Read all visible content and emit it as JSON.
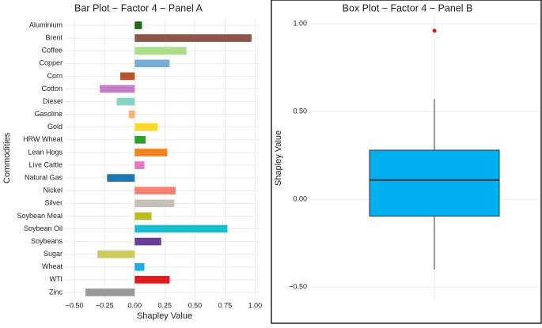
{
  "chart_data": [
    {
      "type": "bar",
      "title": "Bar Plot − Factor 4 − Panel A",
      "x_label": "Shapley Value",
      "y_label": "Commodities",
      "categories": [
        "Aluminium",
        "Brent",
        "Coffee",
        "Copper",
        "Corn",
        "Cotton",
        "Diesel",
        "Gasoline",
        "Gold",
        "HRW Wheat",
        "Lean Hogs",
        "Live Cattle",
        "Natural Gas",
        "Nickel",
        "Silver",
        "Soybean Meal",
        "Soybean Oil",
        "Soybeans",
        "Sugar",
        "Wheat",
        "WTI",
        "Zinc"
      ],
      "values": [
        0.06,
        0.97,
        0.43,
        0.29,
        -0.12,
        -0.29,
        -0.15,
        -0.05,
        0.19,
        0.09,
        0.27,
        0.08,
        -0.23,
        0.34,
        0.33,
        0.14,
        0.77,
        0.22,
        -0.31,
        0.08,
        0.29,
        -0.41
      ],
      "colors": [
        "#1a6b1a",
        "#8c564b",
        "#aedd8a",
        "#7aaad6",
        "#b5562a",
        "#c47fc4",
        "#86d4c4",
        "#f7b36c",
        "#ffd92f",
        "#2ca02c",
        "#f58220",
        "#e377c2",
        "#1f77b4",
        "#fa8072",
        "#c8c0b8",
        "#bcbd22",
        "#17becf",
        "#6a3d9a",
        "#cdc95a",
        "#17b0e8",
        "#e31a1c",
        "#999999"
      ],
      "xlim": [
        -0.58,
        1.03
      ],
      "xticks": [
        {
          "value": -0.5,
          "label": "−0.50"
        },
        {
          "value": -0.25,
          "label": "−0.25"
        },
        {
          "value": 0,
          "label": "0.00"
        },
        {
          "value": 0.25,
          "label": "0.25"
        },
        {
          "value": 0.5,
          "label": "0.50"
        },
        {
          "value": 0.75,
          "label": "0.75"
        },
        {
          "value": 1,
          "label": "1.00"
        }
      ],
      "grid": true
    },
    {
      "type": "box",
      "title": "Box Plot − Factor 4 − Panel B",
      "y_label": "Shapley Value",
      "q1": -0.095,
      "median": 0.11,
      "q3": 0.28,
      "whisker_low": -0.4,
      "whisker_high": 0.57,
      "outliers": [
        0.96
      ],
      "color": "#00b0f0",
      "outlier_color": "#e31a1c",
      "ylim": [
        -0.575,
        1.045
      ],
      "yticks": [
        {
          "value": -0.5,
          "label": "−0.50"
        },
        {
          "value": 0,
          "label": "0.00"
        },
        {
          "value": 0.5,
          "label": "0.50"
        },
        {
          "value": 1,
          "label": "1.00"
        }
      ],
      "grid": true
    }
  ]
}
